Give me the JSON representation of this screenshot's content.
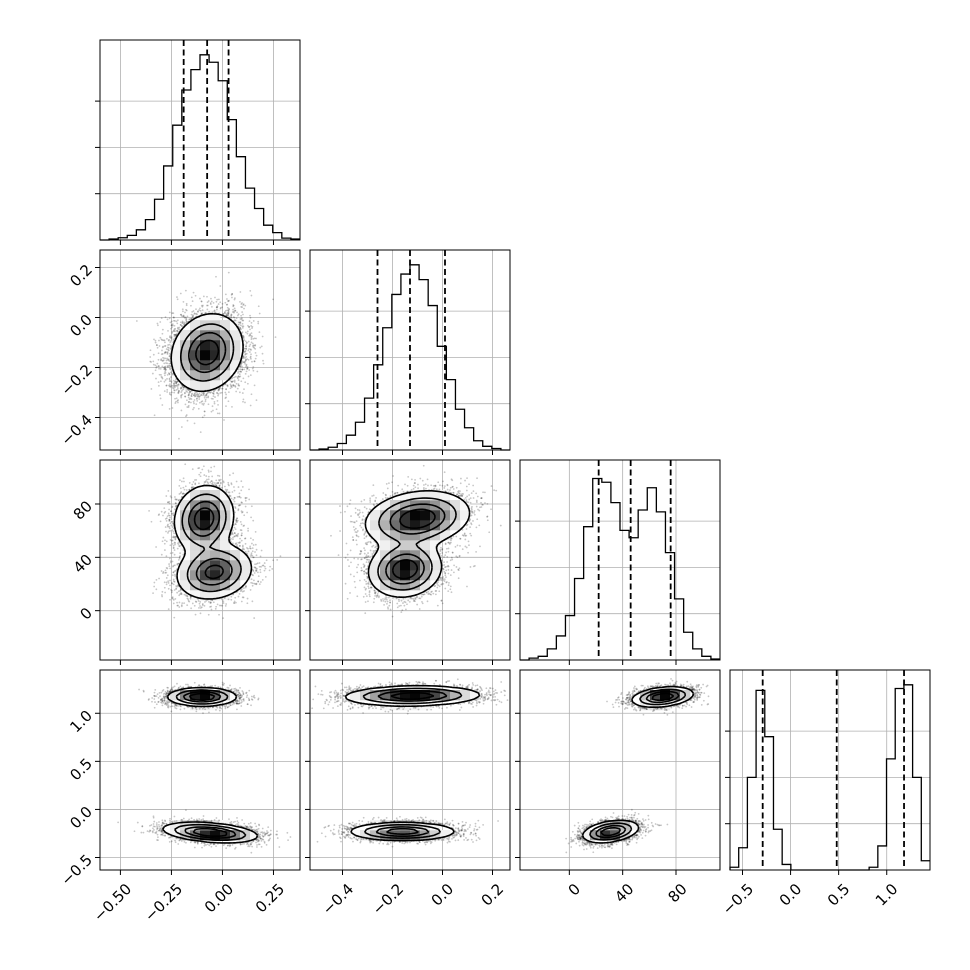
{
  "chart_data": {
    "type": "corner",
    "title": "",
    "parameters": [
      {
        "index": 0,
        "range": [
          -0.6,
          0.38
        ],
        "ticks": [
          -0.5,
          -0.25,
          0.0,
          0.25
        ],
        "tick_labels": [
          "−0.50",
          "−0.25",
          "0.00",
          "0.25"
        ]
      },
      {
        "index": 1,
        "range": [
          -0.53,
          0.27
        ],
        "ticks": [
          -0.4,
          -0.2,
          0.0,
          0.2
        ],
        "tick_labels": [
          "−0.4",
          "−0.2",
          "0.0",
          "0.2"
        ]
      },
      {
        "index": 2,
        "range": [
          -37,
          113
        ],
        "ticks": [
          0,
          40,
          80
        ],
        "tick_labels": [
          "0",
          "40",
          "80"
        ]
      },
      {
        "index": 3,
        "range": [
          -0.63,
          1.45
        ],
        "ticks": [
          -0.5,
          0.0,
          0.5,
          1.0
        ],
        "tick_labels": [
          "−0.5",
          "0.0",
          "0.5",
          "1.0"
        ]
      }
    ],
    "histograms": [
      {
        "param": 0,
        "ymax": 1.0,
        "values": [
          0,
          0.005,
          0.012,
          0.025,
          0.055,
          0.11,
          0.22,
          0.4,
          0.62,
          0.81,
          0.92,
          1.0,
          0.96,
          0.86,
          0.65,
          0.45,
          0.28,
          0.17,
          0.08,
          0.04,
          0.01,
          0.005
        ]
      },
      {
        "param": 1,
        "ymax": 1.0,
        "values": [
          0,
          0.005,
          0.015,
          0.035,
          0.08,
          0.15,
          0.28,
          0.46,
          0.66,
          0.84,
          0.95,
          1.0,
          0.92,
          0.78,
          0.56,
          0.38,
          0.22,
          0.12,
          0.05,
          0.02,
          0.008,
          0
        ]
      },
      {
        "param": 2,
        "ymax": 1.0,
        "values": [
          0,
          0.01,
          0.02,
          0.06,
          0.13,
          0.24,
          0.44,
          0.72,
          0.98,
          0.96,
          0.85,
          0.7,
          0.66,
          0.81,
          0.93,
          0.8,
          0.58,
          0.33,
          0.15,
          0.06,
          0.02,
          0.005
        ]
      },
      {
        "param": 3,
        "ymax": 1.0,
        "values": [
          0.015,
          0.12,
          0.5,
          0.97,
          0.72,
          0.22,
          0.03,
          0,
          0,
          0,
          0,
          0,
          0,
          0,
          0,
          0,
          0.015,
          0.13,
          0.6,
          0.98,
          1.0,
          0.5,
          0.05
        ]
      }
    ],
    "quantiles": [
      [
        -0.19,
        -0.075,
        0.03
      ],
      [
        -0.26,
        -0.13,
        0.01
      ],
      [
        22,
        46,
        76
      ],
      [
        -0.29,
        0.48,
        1.18
      ]
    ],
    "density_modes": [
      {
        "x": 1,
        "y": 0,
        "modes": [
          {
            "cx": -0.075,
            "cy": -0.14,
            "sx": 0.085,
            "sy": 0.075,
            "rho": 0.15,
            "w": 1.0
          }
        ]
      },
      {
        "x": 2,
        "y": 0,
        "modes": [
          {
            "cx": -0.09,
            "cy": 69,
            "sx": 0.07,
            "sy": 12,
            "rho": 0.1,
            "w": 1.0
          },
          {
            "cx": -0.04,
            "cy": 29,
            "sx": 0.09,
            "sy": 10,
            "rho": 0.15,
            "w": 0.9
          }
        ]
      },
      {
        "x": 2,
        "y": 1,
        "modes": [
          {
            "cx": -0.1,
            "cy": 69,
            "sx": 0.1,
            "sy": 10,
            "rho": 0.2,
            "w": 1.0
          },
          {
            "cx": -0.15,
            "cy": 31,
            "sx": 0.07,
            "sy": 10,
            "rho": 0.1,
            "w": 1.0
          }
        ]
      },
      {
        "x": 3,
        "y": 0,
        "modes": [
          {
            "cx": -0.1,
            "cy": 1.17,
            "sx": 0.08,
            "sy": 0.045,
            "rho": 0.0,
            "w": 1.0
          },
          {
            "cx": -0.06,
            "cy": -0.24,
            "sx": 0.11,
            "sy": 0.05,
            "rho": -0.35,
            "w": 1.0
          }
        ]
      },
      {
        "x": 3,
        "y": 1,
        "modes": [
          {
            "cx": -0.12,
            "cy": 1.18,
            "sx": 0.13,
            "sy": 0.05,
            "rho": 0.1,
            "w": 1.0
          },
          {
            "cx": -0.16,
            "cy": -0.23,
            "sx": 0.1,
            "sy": 0.045,
            "rho": 0.0,
            "w": 1.0
          }
        ]
      },
      {
        "x": 3,
        "y": 2,
        "modes": [
          {
            "cx": 70,
            "cy": 1.17,
            "sx": 11,
            "sy": 0.05,
            "rho": 0.3,
            "w": 1.0
          },
          {
            "cx": 31,
            "cy": -0.23,
            "sx": 10,
            "sy": 0.055,
            "rho": 0.35,
            "w": 1.0
          }
        ]
      }
    ],
    "contour_levels": [
      0.12,
      0.32,
      0.58,
      0.82
    ],
    "grid": true,
    "legend": "none"
  }
}
